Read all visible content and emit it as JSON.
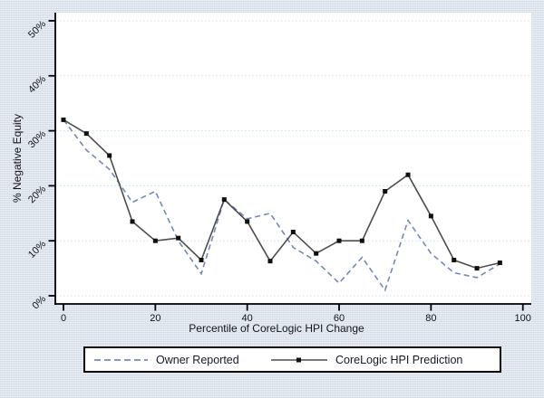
{
  "chart_data": {
    "type": "line",
    "title": "",
    "xlabel": "Percentile of CoreLogic HPI Change",
    "ylabel": "% Negative Equity",
    "x": [
      0,
      5,
      10,
      15,
      20,
      25,
      30,
      35,
      40,
      45,
      50,
      55,
      60,
      65,
      70,
      75,
      80,
      85,
      90,
      95
    ],
    "series": [
      {
        "name": "Owner Reported",
        "line_style": "dashed",
        "marker": "none",
        "color": "#7588b4",
        "values": [
          32,
          26.5,
          23,
          17,
          19,
          10,
          4,
          17.5,
          14,
          15,
          8.8,
          6.3,
          2.3,
          7,
          1,
          13.7,
          7.7,
          4.2,
          3.3,
          5.8
        ]
      },
      {
        "name": "CoreLogic HPI Prediction",
        "line_style": "solid",
        "marker": "square",
        "color": "#4d4d4d",
        "marker_color": "#101010",
        "values": [
          32,
          29.5,
          25.5,
          13.5,
          10,
          10.5,
          6.5,
          17.5,
          13.5,
          6.3,
          11.6,
          7.7,
          10,
          10,
          19,
          22,
          14.5,
          6.5,
          5,
          6
        ]
      }
    ],
    "x_ticks": [
      0,
      20,
      40,
      60,
      80,
      100
    ],
    "y_tick_values": [
      0,
      10,
      20,
      30,
      40,
      50
    ],
    "y_tick_labels": [
      "0%",
      "10%",
      "20%",
      "30%",
      "40%",
      "50%"
    ],
    "xlim": [
      0,
      100
    ],
    "ylim": [
      0,
      50
    ],
    "grid": "horizontal dotted gridlines",
    "gridline_color": "#bde2ec",
    "plot_bg": "#ffffff",
    "figure_bg": "#eef0f2",
    "axis_color": "#000000",
    "legend_position": "bottom boxed",
    "y_tick_label_angle_deg": -45
  }
}
